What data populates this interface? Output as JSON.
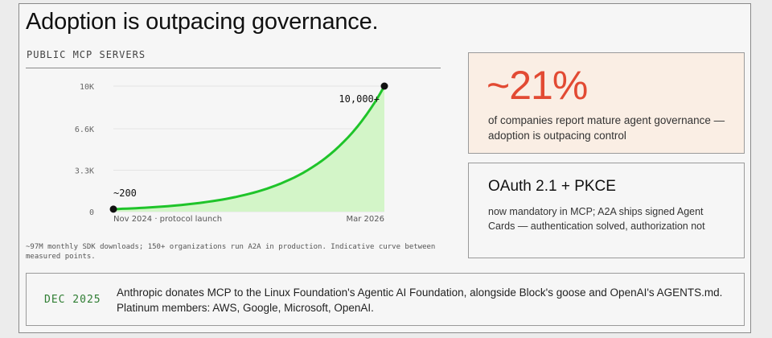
{
  "headline": "Adoption is outpacing governance.",
  "chart_label": "PUBLIC MCP SERVERS",
  "chart_data": {
    "type": "area",
    "x": [
      "Nov 2024",
      "Mar 2026"
    ],
    "x_tick_labels": [
      "Nov 2024 · protocol launch",
      "Mar 2026"
    ],
    "y_ticks": [
      0,
      3300,
      6600,
      10000
    ],
    "y_tick_labels": [
      "0",
      "3.3K",
      "6.6K",
      "10K"
    ],
    "ylim": [
      0,
      10000
    ],
    "series": [
      {
        "values": [
          200,
          10000
        ]
      }
    ],
    "curve": "exponential",
    "point_labels": [
      "~200",
      "10,000+"
    ],
    "line_color": "#1fc42a",
    "fill_color": "#d3f5c8",
    "grid": true
  },
  "footnote": "~97M monthly SDK downloads; 150+ organizations run A2A in production. Indicative curve between measured points.",
  "stat": {
    "value": "~21%",
    "description": "of companies report mature agent governance — adoption is outpacing control",
    "color": "#e24a33"
  },
  "oauth": {
    "title": "OAuth 2.1 + PKCE",
    "description": "now mandatory in MCP; A2A ships signed Agent Cards — authentication solved, authorization not"
  },
  "event": {
    "date": "DEC 2025",
    "text": "Anthropic donates MCP to the Linux Foundation's Agentic AI Foundation, alongside Block's goose and OpenAI's AGENTS.md. Platinum members: AWS, Google, Microsoft, OpenAI."
  }
}
